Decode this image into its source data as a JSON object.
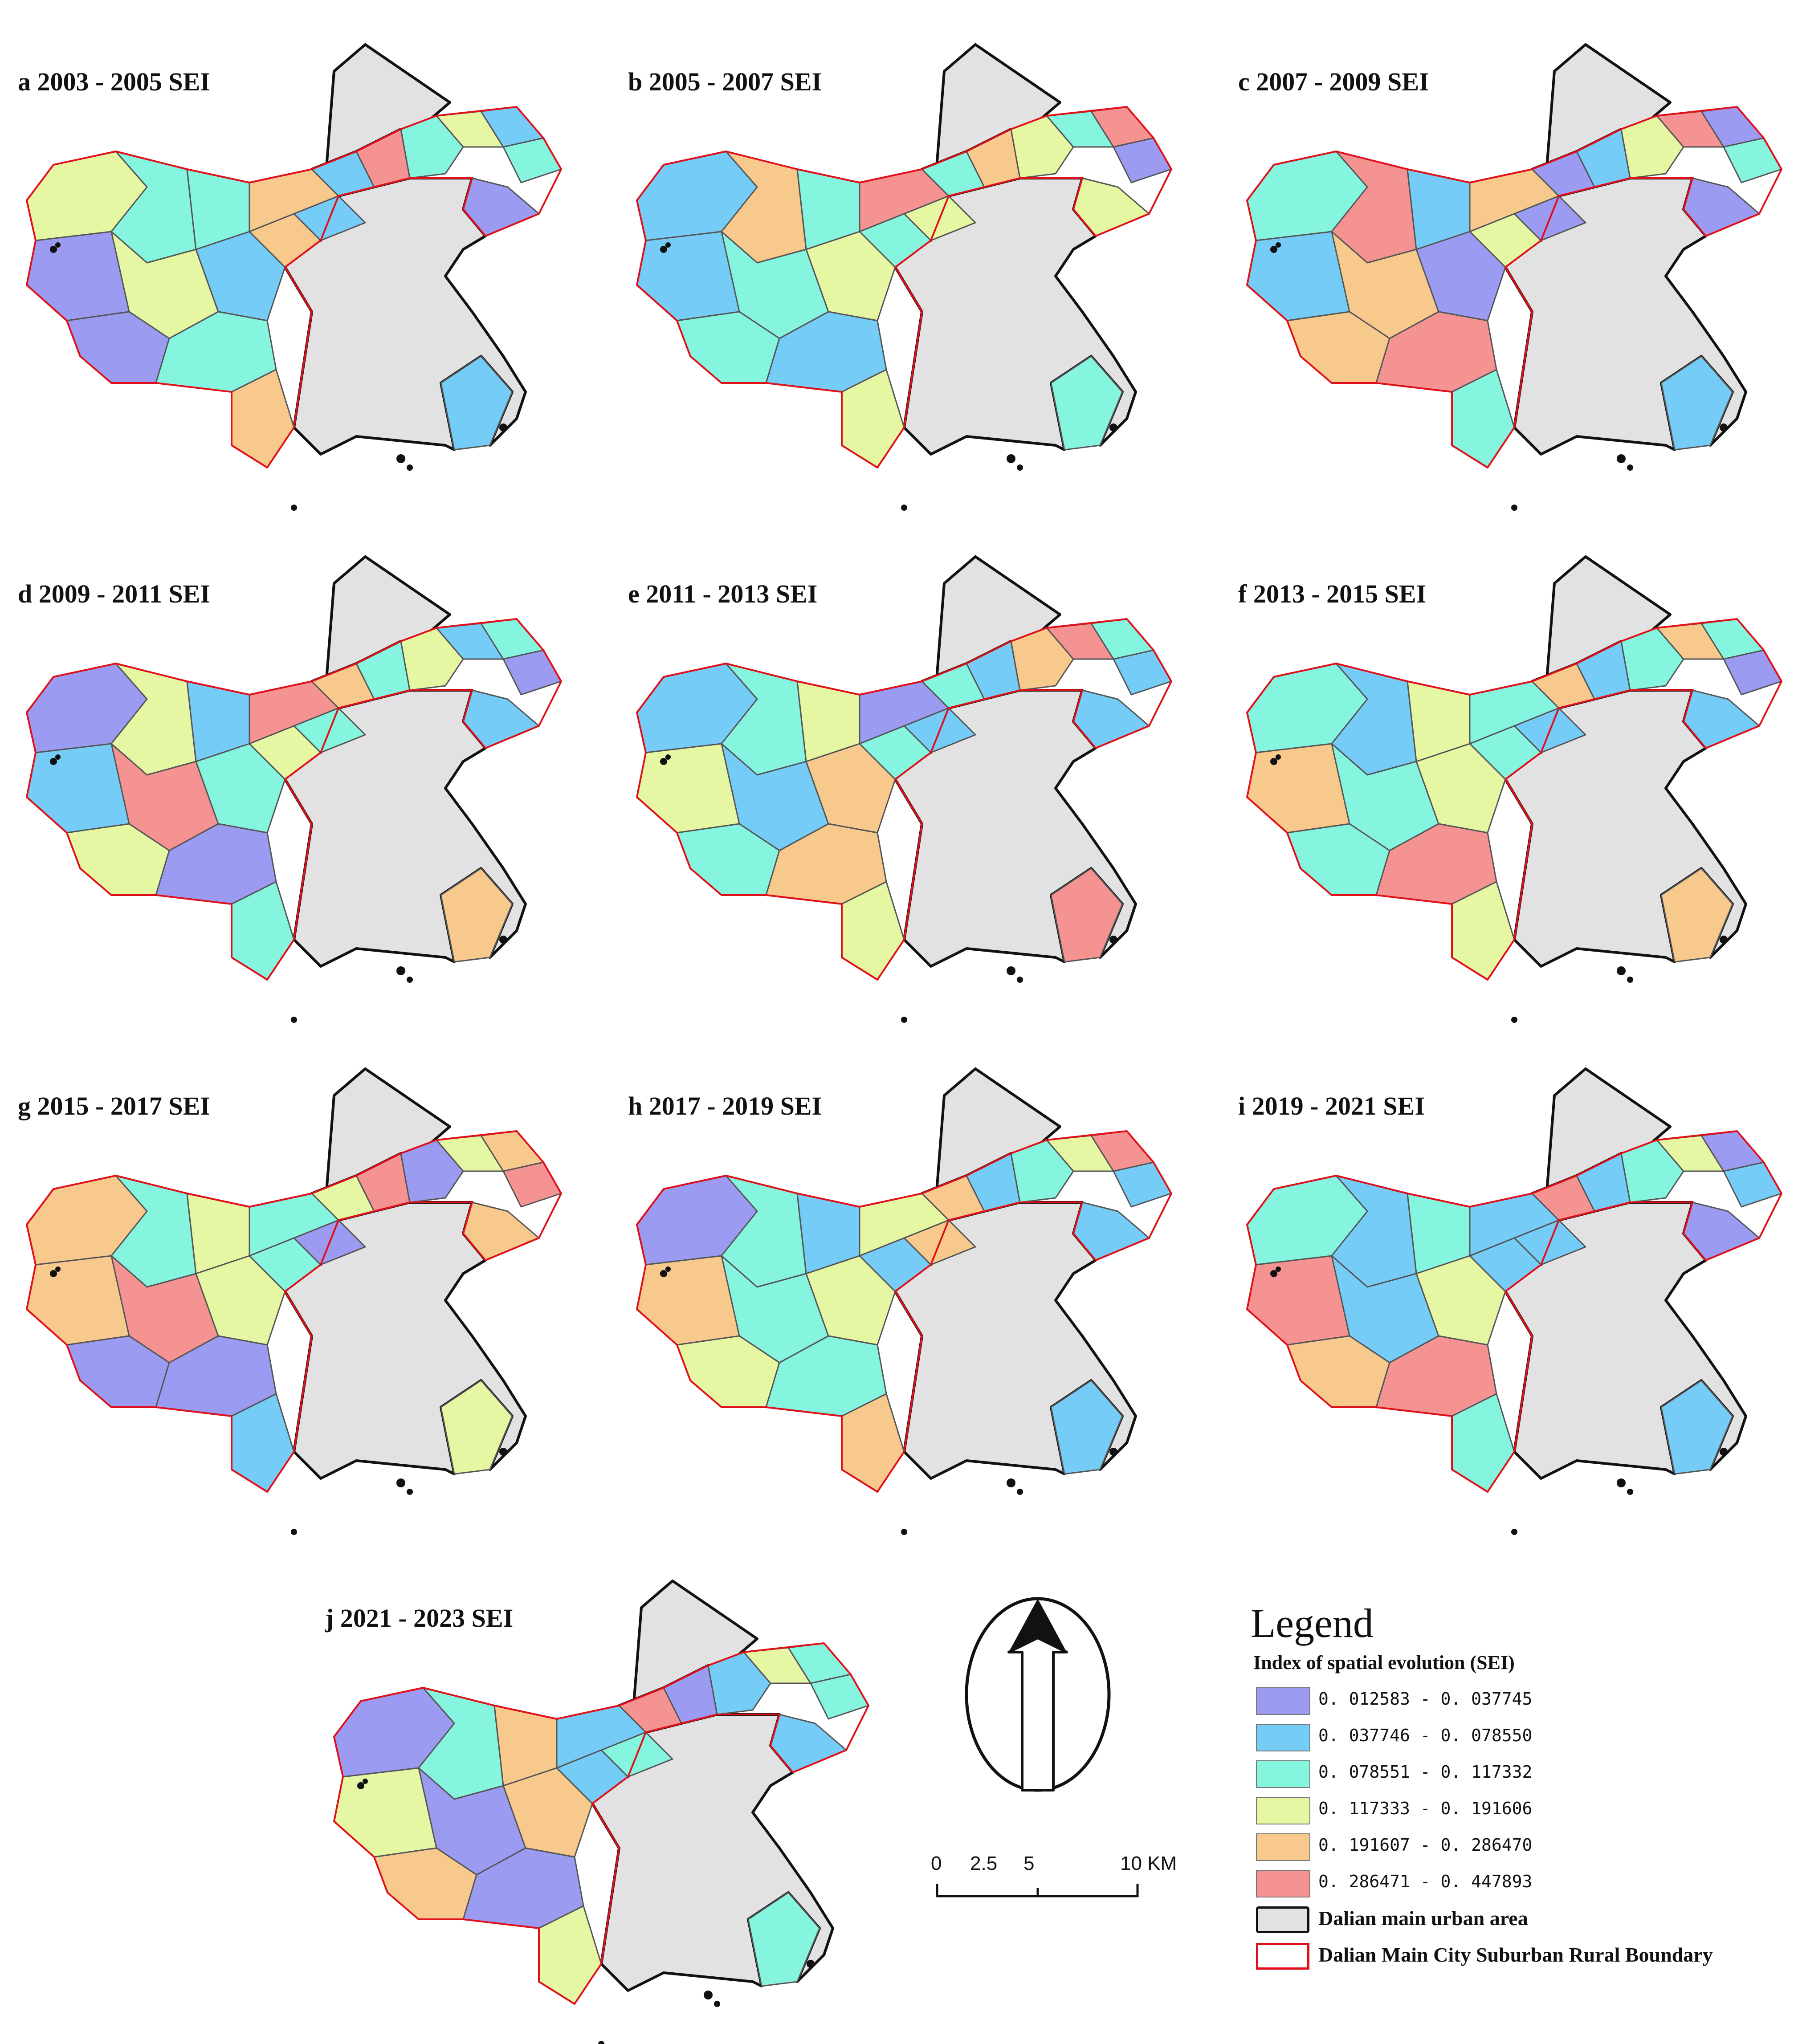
{
  "panels": [
    {
      "id": "a",
      "title": "a 2003 - 2005 SEI",
      "scheme": [
        1,
        4,
        2,
        5,
        2,
        4,
        3,
        3,
        5,
        2,
        6,
        3,
        4,
        2,
        3,
        1,
        1,
        3,
        5,
        2
      ]
    },
    {
      "id": "b",
      "title": "b  2005 - 2007 SEI",
      "scheme": [
        2,
        3,
        4,
        3,
        4,
        2,
        5,
        3,
        6,
        3,
        5,
        4,
        3,
        6,
        1,
        4,
        3,
        2,
        4,
        3
      ]
    },
    {
      "id": "c",
      "title": "c  2007 - 2009 SEI",
      "scheme": [
        2,
        5,
        1,
        4,
        1,
        3,
        6,
        2,
        5,
        1,
        2,
        4,
        6,
        1,
        3,
        1,
        5,
        6,
        3,
        2
      ]
    },
    {
      "id": "d",
      "title": "d  2009 - 2011 SEI",
      "scheme": [
        2,
        6,
        3,
        4,
        3,
        1,
        4,
        2,
        6,
        5,
        3,
        4,
        2,
        3,
        1,
        2,
        4,
        1,
        3,
        5
      ]
    },
    {
      "id": "e",
      "title": "e  2011 - 2013 SEI",
      "scheme": [
        4,
        2,
        5,
        3,
        2,
        2,
        3,
        4,
        1,
        3,
        2,
        5,
        6,
        3,
        2,
        2,
        3,
        5,
        4,
        6
      ]
    },
    {
      "id": "f",
      "title": "f  2013 - 2015 SEI",
      "scheme": [
        5,
        3,
        4,
        3,
        2,
        3,
        2,
        4,
        3,
        5,
        2,
        3,
        5,
        3,
        1,
        2,
        3,
        6,
        4,
        5
      ]
    },
    {
      "id": "g",
      "title": "g  2015 - 2017 SEI",
      "scheme": [
        5,
        6,
        4,
        3,
        1,
        5,
        3,
        4,
        3,
        4,
        6,
        1,
        4,
        5,
        6,
        5,
        1,
        1,
        2,
        4
      ]
    },
    {
      "id": "h",
      "title": "h  2017 - 2019 SEI",
      "scheme": [
        5,
        3,
        4,
        2,
        5,
        1,
        3,
        2,
        4,
        5,
        2,
        3,
        4,
        6,
        2,
        2,
        4,
        3,
        5,
        2
      ]
    },
    {
      "id": "i",
      "title": "i  2019 - 2021 SEI",
      "scheme": [
        6,
        2,
        4,
        2,
        2,
        3,
        2,
        3,
        2,
        6,
        2,
        3,
        4,
        1,
        2,
        1,
        5,
        6,
        3,
        2
      ]
    },
    {
      "id": "j",
      "title": "j  2021 - 2023 SEI",
      "scheme": [
        4,
        1,
        5,
        2,
        3,
        1,
        3,
        5,
        2,
        6,
        1,
        2,
        4,
        3,
        3,
        2,
        5,
        1,
        4,
        3
      ]
    }
  ],
  "legend": {
    "title": "Legend",
    "subtitle": "Index of spatial evolution  (SEI)",
    "classes": [
      {
        "range": "0. 012583 - 0. 037745",
        "color": "#9b9bf2"
      },
      {
        "range": "0. 037746 - 0. 078550",
        "color": "#75ccf7"
      },
      {
        "range": "0. 078551 - 0. 117332",
        "color": "#86f5e0"
      },
      {
        "range": "0. 117333 - 0. 191606",
        "color": "#e6f7a3"
      },
      {
        "range": "0. 191607 - 0. 286470",
        "color": "#f7c98c"
      },
      {
        "range": "0. 286471 - 0. 447893",
        "color": "#f59393"
      }
    ],
    "urban_label": "Dalian main urban area",
    "boundary_label": "Dalian Main City Suburban Rural Boundary"
  },
  "scale_bar": {
    "ticks": [
      "0",
      "2.5",
      "5",
      "10 KM"
    ]
  },
  "north_arrow": {
    "icon": "north-arrow-icon"
  }
}
